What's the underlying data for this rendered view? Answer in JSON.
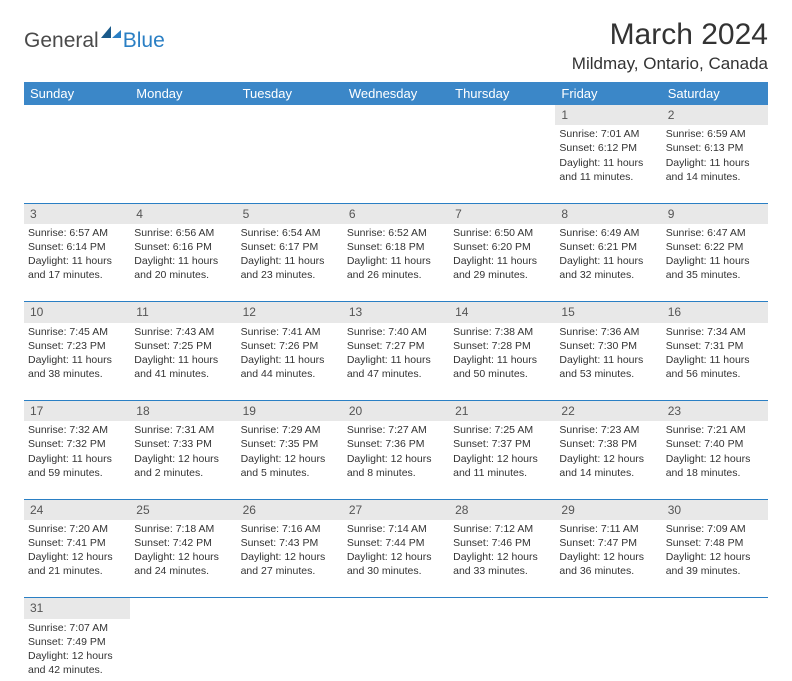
{
  "header": {
    "logo_general": "General",
    "logo_blue": "Blue",
    "month_title": "March 2024",
    "location": "Mildmay, Ontario, Canada"
  },
  "colors": {
    "header_bg": "#3b87c8",
    "header_text": "#ffffff",
    "daynum_bg": "#e8e8e8",
    "cell_border": "#2a7fc4",
    "text": "#333333",
    "logo_blue": "#2a7fc4",
    "logo_gray": "#4a4a4a"
  },
  "weekdays": [
    "Sunday",
    "Monday",
    "Tuesday",
    "Wednesday",
    "Thursday",
    "Friday",
    "Saturday"
  ],
  "weeks": [
    {
      "nums": [
        "",
        "",
        "",
        "",
        "",
        "1",
        "2"
      ],
      "cells": [
        null,
        null,
        null,
        null,
        null,
        {
          "sunrise": "Sunrise: 7:01 AM",
          "sunset": "Sunset: 6:12 PM",
          "daylight": "Daylight: 11 hours and 11 minutes."
        },
        {
          "sunrise": "Sunrise: 6:59 AM",
          "sunset": "Sunset: 6:13 PM",
          "daylight": "Daylight: 11 hours and 14 minutes."
        }
      ]
    },
    {
      "nums": [
        "3",
        "4",
        "5",
        "6",
        "7",
        "8",
        "9"
      ],
      "cells": [
        {
          "sunrise": "Sunrise: 6:57 AM",
          "sunset": "Sunset: 6:14 PM",
          "daylight": "Daylight: 11 hours and 17 minutes."
        },
        {
          "sunrise": "Sunrise: 6:56 AM",
          "sunset": "Sunset: 6:16 PM",
          "daylight": "Daylight: 11 hours and 20 minutes."
        },
        {
          "sunrise": "Sunrise: 6:54 AM",
          "sunset": "Sunset: 6:17 PM",
          "daylight": "Daylight: 11 hours and 23 minutes."
        },
        {
          "sunrise": "Sunrise: 6:52 AM",
          "sunset": "Sunset: 6:18 PM",
          "daylight": "Daylight: 11 hours and 26 minutes."
        },
        {
          "sunrise": "Sunrise: 6:50 AM",
          "sunset": "Sunset: 6:20 PM",
          "daylight": "Daylight: 11 hours and 29 minutes."
        },
        {
          "sunrise": "Sunrise: 6:49 AM",
          "sunset": "Sunset: 6:21 PM",
          "daylight": "Daylight: 11 hours and 32 minutes."
        },
        {
          "sunrise": "Sunrise: 6:47 AM",
          "sunset": "Sunset: 6:22 PM",
          "daylight": "Daylight: 11 hours and 35 minutes."
        }
      ]
    },
    {
      "nums": [
        "10",
        "11",
        "12",
        "13",
        "14",
        "15",
        "16"
      ],
      "cells": [
        {
          "sunrise": "Sunrise: 7:45 AM",
          "sunset": "Sunset: 7:23 PM",
          "daylight": "Daylight: 11 hours and 38 minutes."
        },
        {
          "sunrise": "Sunrise: 7:43 AM",
          "sunset": "Sunset: 7:25 PM",
          "daylight": "Daylight: 11 hours and 41 minutes."
        },
        {
          "sunrise": "Sunrise: 7:41 AM",
          "sunset": "Sunset: 7:26 PM",
          "daylight": "Daylight: 11 hours and 44 minutes."
        },
        {
          "sunrise": "Sunrise: 7:40 AM",
          "sunset": "Sunset: 7:27 PM",
          "daylight": "Daylight: 11 hours and 47 minutes."
        },
        {
          "sunrise": "Sunrise: 7:38 AM",
          "sunset": "Sunset: 7:28 PM",
          "daylight": "Daylight: 11 hours and 50 minutes."
        },
        {
          "sunrise": "Sunrise: 7:36 AM",
          "sunset": "Sunset: 7:30 PM",
          "daylight": "Daylight: 11 hours and 53 minutes."
        },
        {
          "sunrise": "Sunrise: 7:34 AM",
          "sunset": "Sunset: 7:31 PM",
          "daylight": "Daylight: 11 hours and 56 minutes."
        }
      ]
    },
    {
      "nums": [
        "17",
        "18",
        "19",
        "20",
        "21",
        "22",
        "23"
      ],
      "cells": [
        {
          "sunrise": "Sunrise: 7:32 AM",
          "sunset": "Sunset: 7:32 PM",
          "daylight": "Daylight: 11 hours and 59 minutes."
        },
        {
          "sunrise": "Sunrise: 7:31 AM",
          "sunset": "Sunset: 7:33 PM",
          "daylight": "Daylight: 12 hours and 2 minutes."
        },
        {
          "sunrise": "Sunrise: 7:29 AM",
          "sunset": "Sunset: 7:35 PM",
          "daylight": "Daylight: 12 hours and 5 minutes."
        },
        {
          "sunrise": "Sunrise: 7:27 AM",
          "sunset": "Sunset: 7:36 PM",
          "daylight": "Daylight: 12 hours and 8 minutes."
        },
        {
          "sunrise": "Sunrise: 7:25 AM",
          "sunset": "Sunset: 7:37 PM",
          "daylight": "Daylight: 12 hours and 11 minutes."
        },
        {
          "sunrise": "Sunrise: 7:23 AM",
          "sunset": "Sunset: 7:38 PM",
          "daylight": "Daylight: 12 hours and 14 minutes."
        },
        {
          "sunrise": "Sunrise: 7:21 AM",
          "sunset": "Sunset: 7:40 PM",
          "daylight": "Daylight: 12 hours and 18 minutes."
        }
      ]
    },
    {
      "nums": [
        "24",
        "25",
        "26",
        "27",
        "28",
        "29",
        "30"
      ],
      "cells": [
        {
          "sunrise": "Sunrise: 7:20 AM",
          "sunset": "Sunset: 7:41 PM",
          "daylight": "Daylight: 12 hours and 21 minutes."
        },
        {
          "sunrise": "Sunrise: 7:18 AM",
          "sunset": "Sunset: 7:42 PM",
          "daylight": "Daylight: 12 hours and 24 minutes."
        },
        {
          "sunrise": "Sunrise: 7:16 AM",
          "sunset": "Sunset: 7:43 PM",
          "daylight": "Daylight: 12 hours and 27 minutes."
        },
        {
          "sunrise": "Sunrise: 7:14 AM",
          "sunset": "Sunset: 7:44 PM",
          "daylight": "Daylight: 12 hours and 30 minutes."
        },
        {
          "sunrise": "Sunrise: 7:12 AM",
          "sunset": "Sunset: 7:46 PM",
          "daylight": "Daylight: 12 hours and 33 minutes."
        },
        {
          "sunrise": "Sunrise: 7:11 AM",
          "sunset": "Sunset: 7:47 PM",
          "daylight": "Daylight: 12 hours and 36 minutes."
        },
        {
          "sunrise": "Sunrise: 7:09 AM",
          "sunset": "Sunset: 7:48 PM",
          "daylight": "Daylight: 12 hours and 39 minutes."
        }
      ]
    },
    {
      "nums": [
        "31",
        "",
        "",
        "",
        "",
        "",
        ""
      ],
      "cells": [
        {
          "sunrise": "Sunrise: 7:07 AM",
          "sunset": "Sunset: 7:49 PM",
          "daylight": "Daylight: 12 hours and 42 minutes."
        },
        null,
        null,
        null,
        null,
        null,
        null
      ]
    }
  ]
}
